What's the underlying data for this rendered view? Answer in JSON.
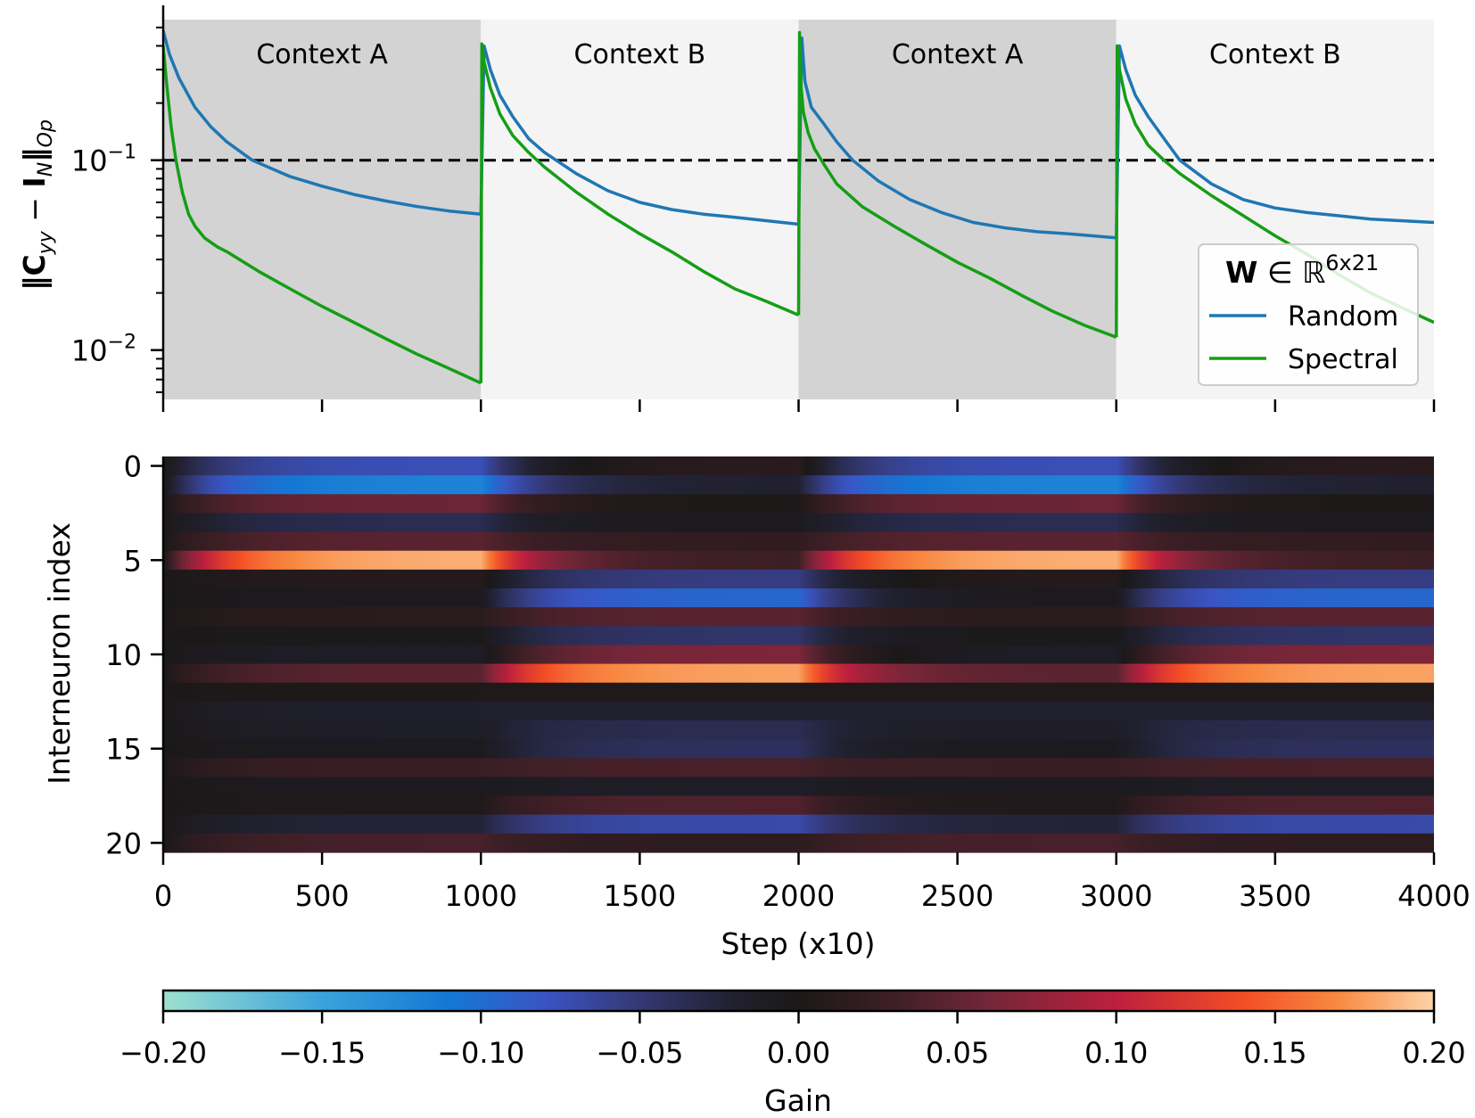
{
  "chart_data": [
    {
      "type": "line",
      "title": "",
      "xlabel": "",
      "ylabel": "‖C_yy − I_N‖_Op",
      "ylabel_parts": {
        "norm": "‖",
        "C": "C",
        "C_sub": "yy",
        "minus": " − ",
        "I": "I",
        "I_sub": "N",
        "op_sub": "Op"
      },
      "yscale": "log",
      "xlim": [
        0,
        4000
      ],
      "ylim": [
        0.0055,
        0.55
      ],
      "yticks": [
        {
          "value": 0.1,
          "base": "10",
          "exp": "−1"
        },
        {
          "value": 0.01,
          "base": "10",
          "exp": "−2"
        }
      ],
      "threshold": 0.1,
      "contexts": [
        {
          "label": "Context A",
          "start": 0,
          "end": 1000,
          "shade": "#d3d3d3"
        },
        {
          "label": "Context B",
          "start": 1000,
          "end": 2000,
          "shade": "#f4f4f4"
        },
        {
          "label": "Context A",
          "start": 2000,
          "end": 3000,
          "shade": "#d3d3d3"
        },
        {
          "label": "Context B",
          "start": 3000,
          "end": 4000,
          "shade": "#f4f4f4"
        }
      ],
      "legend": {
        "title_bold": "W",
        "title_rest": " ∈ ℝ",
        "title_sup": "6x21",
        "position": "lower-right"
      },
      "series": [
        {
          "name": "Random",
          "color": "#1f77b4",
          "segments": [
            {
              "x": [
                0,
                20,
                50,
                100,
                150,
                200,
                280,
                400,
                500,
                600,
                700,
                800,
                900,
                1000
              ],
              "y": [
                0.48,
                0.36,
                0.27,
                0.19,
                0.15,
                0.125,
                0.1,
                0.082,
                0.073,
                0.066,
                0.061,
                0.057,
                0.054,
                0.052
              ]
            },
            {
              "x": [
                1000,
                1010,
                1030,
                1060,
                1100,
                1150,
                1200,
                1300,
                1400,
                1500,
                1600,
                1700,
                1800,
                1900,
                2000
              ],
              "y": [
                0.052,
                0.4,
                0.3,
                0.22,
                0.17,
                0.13,
                0.11,
                0.085,
                0.069,
                0.06,
                0.055,
                0.052,
                0.05,
                0.048,
                0.046
              ]
            },
            {
              "x": [
                2000,
                2010,
                2020,
                2040,
                2080,
                2120,
                2170,
                2250,
                2350,
                2450,
                2550,
                2650,
                2750,
                2850,
                3000
              ],
              "y": [
                0.046,
                0.44,
                0.26,
                0.19,
                0.155,
                0.125,
                0.1,
                0.078,
                0.062,
                0.053,
                0.047,
                0.044,
                0.042,
                0.041,
                0.039
              ]
            },
            {
              "x": [
                3000,
                3010,
                3030,
                3060,
                3100,
                3150,
                3200,
                3300,
                3400,
                3500,
                3600,
                3700,
                3800,
                3900,
                4000
              ],
              "y": [
                0.039,
                0.4,
                0.3,
                0.22,
                0.17,
                0.13,
                0.1,
                0.075,
                0.062,
                0.056,
                0.053,
                0.051,
                0.049,
                0.048,
                0.047
              ]
            }
          ]
        },
        {
          "name": "Spectral",
          "color": "#159e15",
          "segments": [
            {
              "x": [
                0,
                10,
                25,
                40,
                60,
                80,
                100,
                130,
                170,
                200,
                300,
                400,
                500,
                600,
                700,
                800,
                900,
                1000
              ],
              "y": [
                0.4,
                0.26,
                0.15,
                0.1,
                0.068,
                0.052,
                0.045,
                0.039,
                0.035,
                0.033,
                0.026,
                0.021,
                0.017,
                0.014,
                0.0115,
                0.0095,
                0.008,
                0.0067
              ]
            },
            {
              "x": [
                1000,
                1003,
                1010,
                1030,
                1060,
                1100,
                1150,
                1200,
                1300,
                1400,
                1500,
                1600,
                1700,
                1800,
                1900,
                2000
              ],
              "y": [
                0.0067,
                0.41,
                0.33,
                0.24,
                0.175,
                0.135,
                0.11,
                0.092,
                0.068,
                0.052,
                0.041,
                0.033,
                0.026,
                0.021,
                0.018,
                0.0153
              ]
            },
            {
              "x": [
                2000,
                2003,
                2008,
                2015,
                2030,
                2050,
                2080,
                2120,
                2200,
                2300,
                2400,
                2500,
                2600,
                2700,
                2800,
                2900,
                3000
              ],
              "y": [
                0.0153,
                0.47,
                0.24,
                0.18,
                0.14,
                0.115,
                0.095,
                0.075,
                0.057,
                0.045,
                0.036,
                0.029,
                0.024,
                0.0195,
                0.016,
                0.0135,
                0.0117
              ]
            },
            {
              "x": [
                3000,
                3003,
                3010,
                3030,
                3060,
                3100,
                3150,
                3200,
                3300,
                3400,
                3500,
                3600,
                3700,
                3800,
                3900,
                4000
              ],
              "y": [
                0.0117,
                0.4,
                0.3,
                0.21,
                0.155,
                0.12,
                0.1,
                0.085,
                0.065,
                0.051,
                0.04,
                0.032,
                0.025,
                0.02,
                0.0167,
                0.014
              ]
            }
          ]
        }
      ]
    },
    {
      "type": "heatmap",
      "title": "",
      "xlabel": "Step (x10)",
      "ylabel": "Interneuron index",
      "xlim": [
        0,
        4000
      ],
      "xticks": [
        0,
        500,
        1000,
        1500,
        2000,
        2500,
        3000,
        3500,
        4000
      ],
      "yticks": [
        0,
        5,
        10,
        15,
        20
      ],
      "n_rows": 21,
      "colorbar": {
        "label": "Gain",
        "min": -0.2,
        "max": 0.2,
        "ticks": [
          "−0.20",
          "−0.15",
          "−0.10",
          "−0.05",
          "0.00",
          "0.05",
          "0.10",
          "0.15",
          "0.20"
        ],
        "tick_values": [
          -0.2,
          -0.15,
          -0.1,
          -0.05,
          0,
          0.05,
          0.1,
          0.15,
          0.2
        ],
        "stops": [
          {
            "v": -0.2,
            "color": "#9ee0d0"
          },
          {
            "v": -0.15,
            "color": "#3aa3dc"
          },
          {
            "v": -0.11,
            "color": "#1478d4"
          },
          {
            "v": -0.08,
            "color": "#3a54c4"
          },
          {
            "v": -0.05,
            "color": "#343874"
          },
          {
            "v": -0.02,
            "color": "#20202e"
          },
          {
            "v": 0.0,
            "color": "#1b1818"
          },
          {
            "v": 0.03,
            "color": "#3e1f26"
          },
          {
            "v": 0.06,
            "color": "#742638"
          },
          {
            "v": 0.1,
            "color": "#be1f3e"
          },
          {
            "v": 0.14,
            "color": "#f34e25"
          },
          {
            "v": 0.17,
            "color": "#f88a42"
          },
          {
            "v": 0.2,
            "color": "#fdd3a8"
          }
        ]
      },
      "gain_A": [
        -0.075,
        -0.12,
        0.055,
        -0.035,
        0.045,
        0.185,
        0.008,
        -0.005,
        0.012,
        -0.002,
        -0.012,
        0.045,
        0.003,
        -0.018,
        -0.014,
        -0.006,
        0.025,
        -0.006,
        0.004,
        -0.024,
        0.035
      ],
      "gain_B": [
        0.012,
        -0.02,
        0.002,
        -0.005,
        0.018,
        0.028,
        -0.055,
        -0.095,
        0.045,
        -0.045,
        0.065,
        0.18,
        0.003,
        -0.018,
        -0.035,
        -0.04,
        0.035,
        -0.012,
        0.04,
        -0.07,
        0.015
      ]
    }
  ]
}
